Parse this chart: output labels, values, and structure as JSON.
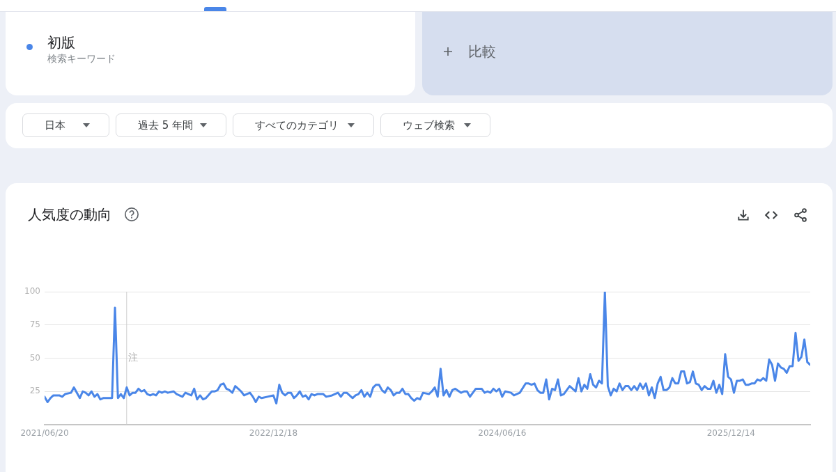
{
  "chart_data": {
    "type": "line",
    "title": "人気度の動向",
    "x": [
      "2021-06-20",
      "2021-06-27",
      "2021-07-04",
      "2021-07-11",
      "2021-07-25",
      "2021-08-01",
      "2021-08-08",
      "2021-08-22",
      "2021-08-29",
      "2021-09-12",
      "2021-09-19",
      "2021-09-26",
      "2021-10-03",
      "2021-10-10",
      "2021-10-17",
      "2021-10-24",
      "2021-10-31",
      "2021-11-07",
      "2021-11-28",
      "2021-12-05",
      "2021-12-12",
      "2021-12-19",
      "2021-12-26",
      "2022-01-02",
      "2022-01-09",
      "2022-01-16",
      "2022-01-23",
      "2022-01-30",
      "2022-02-06",
      "2022-02-13",
      "2022-02-20",
      "2022-02-27",
      "2022-03-06",
      "2022-03-13",
      "2022-03-20",
      "2022-03-27",
      "2022-04-03",
      "2022-04-10",
      "2022-04-24",
      "2022-05-01",
      "2022-05-15",
      "2022-05-22",
      "2022-06-05",
      "2022-06-12",
      "2022-06-19",
      "2022-06-26",
      "2022-07-03",
      "2022-07-10",
      "2022-07-24",
      "2022-07-31",
      "2022-08-07",
      "2022-08-14",
      "2022-08-21",
      "2022-08-28",
      "2022-09-04",
      "2022-09-11",
      "2022-09-18",
      "2022-09-25",
      "2022-10-02",
      "2022-10-09",
      "2022-10-23",
      "2022-10-30",
      "2022-11-06",
      "2022-11-13",
      "2022-11-20",
      "2022-12-04",
      "2022-12-18",
      "2022-12-25",
      "2023-01-01",
      "2023-01-08",
      "2023-01-15",
      "2023-01-22",
      "2023-01-29",
      "2023-02-05",
      "2023-02-12",
      "2023-02-19",
      "2023-02-26",
      "2023-03-05",
      "2023-03-12",
      "2023-03-19",
      "2023-03-26",
      "2023-04-02",
      "2023-04-16",
      "2023-04-23",
      "2023-05-07",
      "2023-05-21",
      "2023-05-28",
      "2023-06-04",
      "2023-06-11",
      "2023-06-25",
      "2023-07-02",
      "2023-07-09",
      "2023-07-16",
      "2023-07-23",
      "2023-07-30",
      "2023-08-06",
      "2023-08-13",
      "2023-08-20",
      "2023-08-27",
      "2023-09-03",
      "2023-09-10",
      "2023-09-17",
      "2023-09-24",
      "2023-10-01",
      "2023-10-08",
      "2023-10-15",
      "2023-10-22",
      "2023-10-29",
      "2023-11-05",
      "2023-11-12",
      "2023-11-19",
      "2023-11-26",
      "2023-12-03",
      "2023-12-10",
      "2023-12-24",
      "2023-12-31",
      "2024-01-07",
      "2024-01-14",
      "2024-01-21",
      "2024-01-28",
      "2024-02-04",
      "2024-02-11",
      "2024-02-18",
      "2024-02-25",
      "2024-03-10",
      "2024-03-17",
      "2024-03-24",
      "2024-03-31",
      "2024-04-07",
      "2024-04-14",
      "2024-04-28",
      "2024-05-05",
      "2024-05-12",
      "2024-05-19",
      "2024-05-26",
      "2024-06-02",
      "2024-06-09",
      "2024-06-16",
      "2024-06-23",
      "2024-07-07",
      "2024-07-14",
      "2024-07-28",
      "2024-08-11",
      "2024-08-18",
      "2024-08-25",
      "2024-09-01",
      "2024-09-08",
      "2024-09-15",
      "2024-09-22",
      "2024-09-29",
      "2024-10-06",
      "2024-10-13",
      "2024-10-20",
      "2024-10-27",
      "2024-11-03",
      "2024-11-10",
      "2024-11-24",
      "2024-12-01",
      "2024-12-08",
      "2024-12-15",
      "2024-12-22",
      "2024-12-29",
      "2025-01-05",
      "2025-01-12",
      "2025-01-19",
      "2025-01-26",
      "2025-02-02",
      "2025-02-09",
      "2025-02-16",
      "2025-02-23",
      "2025-03-02",
      "2025-03-09",
      "2025-03-16",
      "2025-03-23",
      "2025-03-30",
      "2025-04-06",
      "2025-04-13",
      "2025-04-20",
      "2025-04-27",
      "2025-05-04",
      "2025-05-11",
      "2025-05-18",
      "2025-05-25",
      "2025-06-01",
      "2025-06-08",
      "2025-06-15",
      "2025-06-22",
      "2025-06-29",
      "2025-07-06",
      "2025-07-13",
      "2025-07-20",
      "2025-07-27",
      "2025-08-03",
      "2025-08-10",
      "2025-08-17",
      "2025-08-24",
      "2025-08-31",
      "2025-09-07",
      "2025-09-14",
      "2025-09-21",
      "2025-09-28",
      "2025-10-05",
      "2025-10-12",
      "2025-10-19",
      "2025-10-26",
      "2025-11-02",
      "2025-11-09",
      "2025-11-16",
      "2025-11-23",
      "2025-11-30",
      "2025-12-07",
      "2025-12-14",
      "2025-12-21",
      "2025-12-28",
      "2026-01-04",
      "2026-01-11",
      "2026-01-18",
      "2026-01-25",
      "2026-02-01",
      "2026-02-08",
      "2026-02-15",
      "2026-02-22",
      "2026-03-01",
      "2026-03-08",
      "2026-03-15",
      "2026-03-22",
      "2026-03-29",
      "2026-04-05",
      "2026-04-12",
      "2026-04-19",
      "2026-04-26",
      "2026-05-03",
      "2026-05-10",
      "2026-05-17",
      "2026-05-24",
      "2026-05-31",
      "2026-06-07",
      "2026-06-14",
      "2026-06-21"
    ],
    "series": [
      {
        "name": "初版",
        "color": "#4a86e8",
        "values": [
          21,
          17,
          20,
          22,
          22,
          21,
          23,
          24,
          28,
          20,
          25,
          24,
          22,
          25,
          21,
          23,
          19,
          20,
          20,
          88,
          20,
          23,
          20,
          28,
          22,
          24,
          24,
          27,
          25,
          26,
          23,
          22,
          23,
          22,
          25,
          24,
          25,
          24,
          25,
          23,
          21,
          24,
          22,
          27,
          19,
          22,
          19,
          20,
          25,
          25,
          26,
          30,
          31,
          27,
          26,
          24,
          29,
          27,
          25,
          22,
          24,
          21,
          17,
          21,
          20,
          21,
          22,
          16,
          30,
          24,
          22,
          24,
          24,
          20,
          22,
          25,
          21,
          22,
          19,
          23,
          22,
          23,
          23,
          21,
          22,
          24,
          21,
          24,
          24,
          20,
          22,
          23,
          26,
          21,
          24,
          21,
          28,
          30,
          30,
          26,
          24,
          28,
          26,
          22,
          24,
          24,
          27,
          23,
          23,
          20,
          18,
          20,
          19,
          24,
          23,
          25,
          28,
          21,
          42,
          22,
          26,
          21,
          26,
          27,
          24,
          25,
          25,
          21,
          24,
          27,
          27,
          24,
          25,
          24,
          27,
          25,
          27,
          21,
          25,
          24,
          22,
          24,
          31,
          31,
          30,
          31,
          26,
          24,
          24,
          34,
          19,
          27,
          26,
          34,
          22,
          23,
          29,
          27,
          25,
          35,
          25,
          30,
          27,
          38,
          30,
          28,
          33,
          31,
          100,
          29,
          22,
          27,
          25,
          31,
          26,
          29,
          29,
          26,
          29,
          26,
          31,
          27,
          31,
          22,
          28,
          20,
          31,
          36,
          26,
          26,
          28,
          35,
          31,
          31,
          40,
          40,
          31,
          32,
          40,
          31,
          30,
          26,
          29,
          27,
          27,
          33,
          24,
          30,
          23,
          53,
          36,
          34,
          24,
          33,
          33,
          34,
          30,
          30,
          31,
          31,
          34,
          33,
          35,
          33,
          49,
          45,
          33,
          46,
          43,
          42,
          39,
          44,
          44,
          69,
          48,
          51,
          64,
          47,
          45
        ]
      }
    ],
    "xlim": [
      "2021-06-20",
      "2026-06-21"
    ],
    "xticks": [
      {
        "value": "2021-06-20",
        "label": "2021/06/20"
      },
      {
        "value": "2022-12-18",
        "label": "2022/12/18"
      },
      {
        "value": "2024-06-16",
        "label": "2024/06/16"
      },
      {
        "value": "2025-12-14",
        "label": "2025/12/14"
      }
    ],
    "ylim": [
      0,
      100
    ],
    "yticks": [
      25,
      50,
      75,
      100
    ],
    "grid": "y",
    "legend": "top left",
    "ref_lines": [
      {
        "axis": "x",
        "value": "2022-01-01",
        "label": "注",
        "color": "#cccccc"
      }
    ],
    "annotations": [
      "検索キーワード",
      "比較",
      "日本",
      "過去 5 年間",
      "すべてのカテゴリ",
      "ウェブ検索"
    ]
  }
}
